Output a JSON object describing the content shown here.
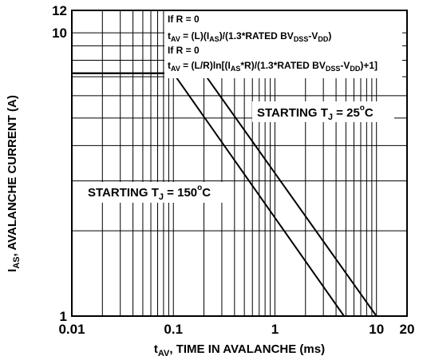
{
  "chart_data": {
    "type": "line",
    "xlabel": {
      "main": "t",
      "sub": "AV",
      "rest": ", TIME IN AVALANCHE (ms)"
    },
    "ylabel": {
      "main": "I",
      "sub": "AS",
      "rest": ", AVALANCHE CURRENT (A)"
    },
    "x_scale": "log",
    "y_scale": "log",
    "xlim": [
      0.01,
      20
    ],
    "ylim": [
      1,
      12
    ],
    "grid": true,
    "x_ticks": [
      {
        "value": 0.01,
        "label": "0.01"
      },
      {
        "value": 0.1,
        "label": "0.1"
      },
      {
        "value": 1,
        "label": "1"
      },
      {
        "value": 10,
        "label": "10"
      },
      {
        "value": 20,
        "label": "20"
      }
    ],
    "y_ticks": [
      {
        "value": 1,
        "label": "1"
      },
      {
        "value": 10,
        "label": "10"
      },
      {
        "value": 12,
        "label": "12"
      }
    ],
    "series": [
      {
        "name": "STARTING TJ = 150°C",
        "x": [
          0.01,
          0.1,
          4.8
        ],
        "y": [
          7.2,
          7.2,
          1
        ]
      },
      {
        "name": "STARTING TJ = 25°C",
        "x": [
          0.01,
          0.2,
          10
        ],
        "y": [
          7.2,
          7.2,
          1
        ]
      }
    ],
    "formula_box": [
      {
        "parts": [
          {
            "t": "If R = 0"
          }
        ]
      },
      {
        "parts": [
          {
            "t": "t"
          },
          {
            "t": "AV",
            "sub": true
          },
          {
            "t": " = (L)(I"
          },
          {
            "t": "AS",
            "sub": true
          },
          {
            "t": ")/(1.3*RATED BV"
          },
          {
            "t": "DSS",
            "sub": true
          },
          {
            "t": "-V"
          },
          {
            "t": "DD",
            "sub": true
          },
          {
            "t": ")"
          }
        ]
      },
      {
        "parts": [
          {
            "t": "If R = 0"
          }
        ]
      },
      {
        "parts": [
          {
            "t": "t"
          },
          {
            "t": "AV",
            "sub": true
          },
          {
            "t": " = (L/R)ln[(I"
          },
          {
            "t": "AS",
            "sub": true
          },
          {
            "t": "*R)/(1.3*RATED BV"
          },
          {
            "t": "DSS",
            "sub": true
          },
          {
            "t": "-V"
          },
          {
            "t": "DD",
            "sub": true
          },
          {
            "t": ")+1]"
          }
        ]
      }
    ],
    "annotations": {
      "t25": {
        "pre": "STARTING T",
        "sub": "J",
        "mid": " = 25",
        "sup": "o",
        "post": "C"
      },
      "t150": {
        "pre": "STARTING T",
        "sub": "J",
        "mid": " = 150",
        "sup": "o",
        "post": "C"
      }
    }
  }
}
